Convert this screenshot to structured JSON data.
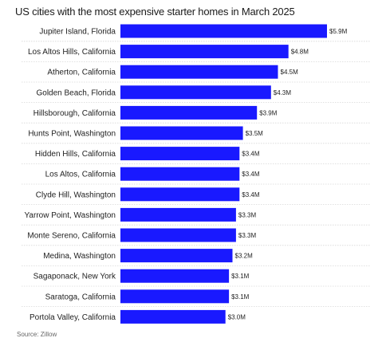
{
  "title": "US cities with the most expensive starter homes in March 2025",
  "source": "Source: Zillow",
  "colors": {
    "bar": "#1919ff",
    "separator": "#d7d7d7",
    "text": "#222222"
  },
  "chart_data": {
    "type": "bar",
    "orientation": "horizontal",
    "title": "US cities with the most expensive starter homes in March 2025",
    "xlabel": "",
    "ylabel": "",
    "grid": false,
    "xlim": [
      0,
      5.9
    ],
    "unit": "$M",
    "categories": [
      "Jupiter Island, Florida",
      "Los Altos Hills, California",
      "Atherton, California",
      "Golden Beach, Florida",
      "Hillsborough, California",
      "Hunts Point, Washington",
      "Hidden Hills, California",
      "Los Altos, California",
      "Clyde Hill, Washington",
      "Yarrow Point, Washington",
      "Monte Sereno, California",
      "Medina, Washington",
      "Sagaponack, New York",
      "Saratoga, California",
      "Portola Valley, California"
    ],
    "values": [
      5.9,
      4.8,
      4.5,
      4.3,
      3.9,
      3.5,
      3.4,
      3.4,
      3.4,
      3.3,
      3.3,
      3.2,
      3.1,
      3.1,
      3.0
    ],
    "value_labels": [
      "$5.9M",
      "$4.8M",
      "$4.5M",
      "$4.3M",
      "$3.9M",
      "$3.5M",
      "$3.4M",
      "$3.4M",
      "$3.4M",
      "$3.3M",
      "$3.3M",
      "$3.2M",
      "$3.1M",
      "$3.1M",
      "$3.0M"
    ]
  }
}
